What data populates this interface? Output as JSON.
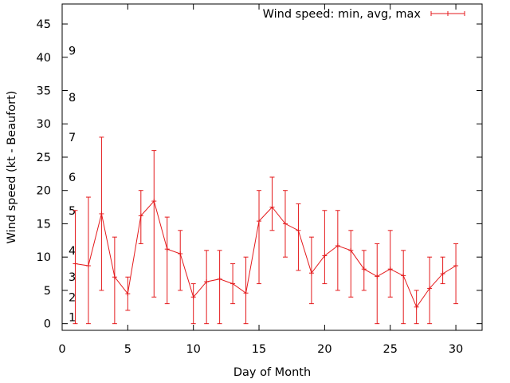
{
  "chart_data": {
    "type": "line",
    "title": "",
    "xlabel": "Day of Month",
    "ylabel": "Wind speed (kt - Beaufort)",
    "xlim": [
      0,
      32
    ],
    "ylim": [
      -1,
      48
    ],
    "xticks": [
      0,
      5,
      10,
      15,
      20,
      25,
      30
    ],
    "yticks": [
      0,
      5,
      10,
      15,
      20,
      25,
      30,
      35,
      40,
      45
    ],
    "grid": false,
    "legend_position": "top-right",
    "series": [
      {
        "name": "Wind speed: min, avg, max",
        "color": "#e41a1c",
        "x": [
          1,
          2,
          3,
          4,
          5,
          6,
          7,
          8,
          9,
          10,
          11,
          12,
          13,
          14,
          15,
          16,
          17,
          18,
          19,
          20,
          21,
          22,
          23,
          24,
          25,
          26,
          27,
          28,
          29,
          30
        ],
        "avg": [
          9,
          8.7,
          16.5,
          7,
          4.5,
          16.2,
          18.4,
          11.2,
          10.5,
          4,
          6.3,
          6.7,
          6,
          4.6,
          15.4,
          17.5,
          15,
          14,
          7.6,
          10.2,
          11.7,
          11,
          8.2,
          7.1,
          8.2,
          7.2,
          2.5,
          5.3,
          7.5,
          8.7
        ],
        "min": [
          0,
          0,
          5,
          0,
          2,
          12,
          4,
          3,
          5,
          0,
          0,
          0,
          3,
          0,
          6,
          14,
          10,
          8,
          3,
          6,
          5,
          4,
          5,
          0,
          4,
          0,
          0,
          0,
          6,
          3
        ],
        "max": [
          17,
          19,
          28,
          13,
          7,
          20,
          26,
          16,
          14,
          6,
          11,
          11,
          9,
          10,
          20,
          22,
          20,
          18,
          13,
          17,
          17,
          14,
          11,
          12,
          14,
          11,
          5,
          10,
          10,
          12
        ]
      }
    ],
    "beaufort_annotations": [
      {
        "label": "1",
        "value": 1
      },
      {
        "label": "2",
        "value": 4
      },
      {
        "label": "3",
        "value": 7
      },
      {
        "label": "4",
        "value": 11
      },
      {
        "label": "5",
        "value": 17
      },
      {
        "label": "6",
        "value": 22
      },
      {
        "label": "7",
        "value": 28
      },
      {
        "label": "8",
        "value": 34
      },
      {
        "label": "9",
        "value": 41
      }
    ]
  }
}
